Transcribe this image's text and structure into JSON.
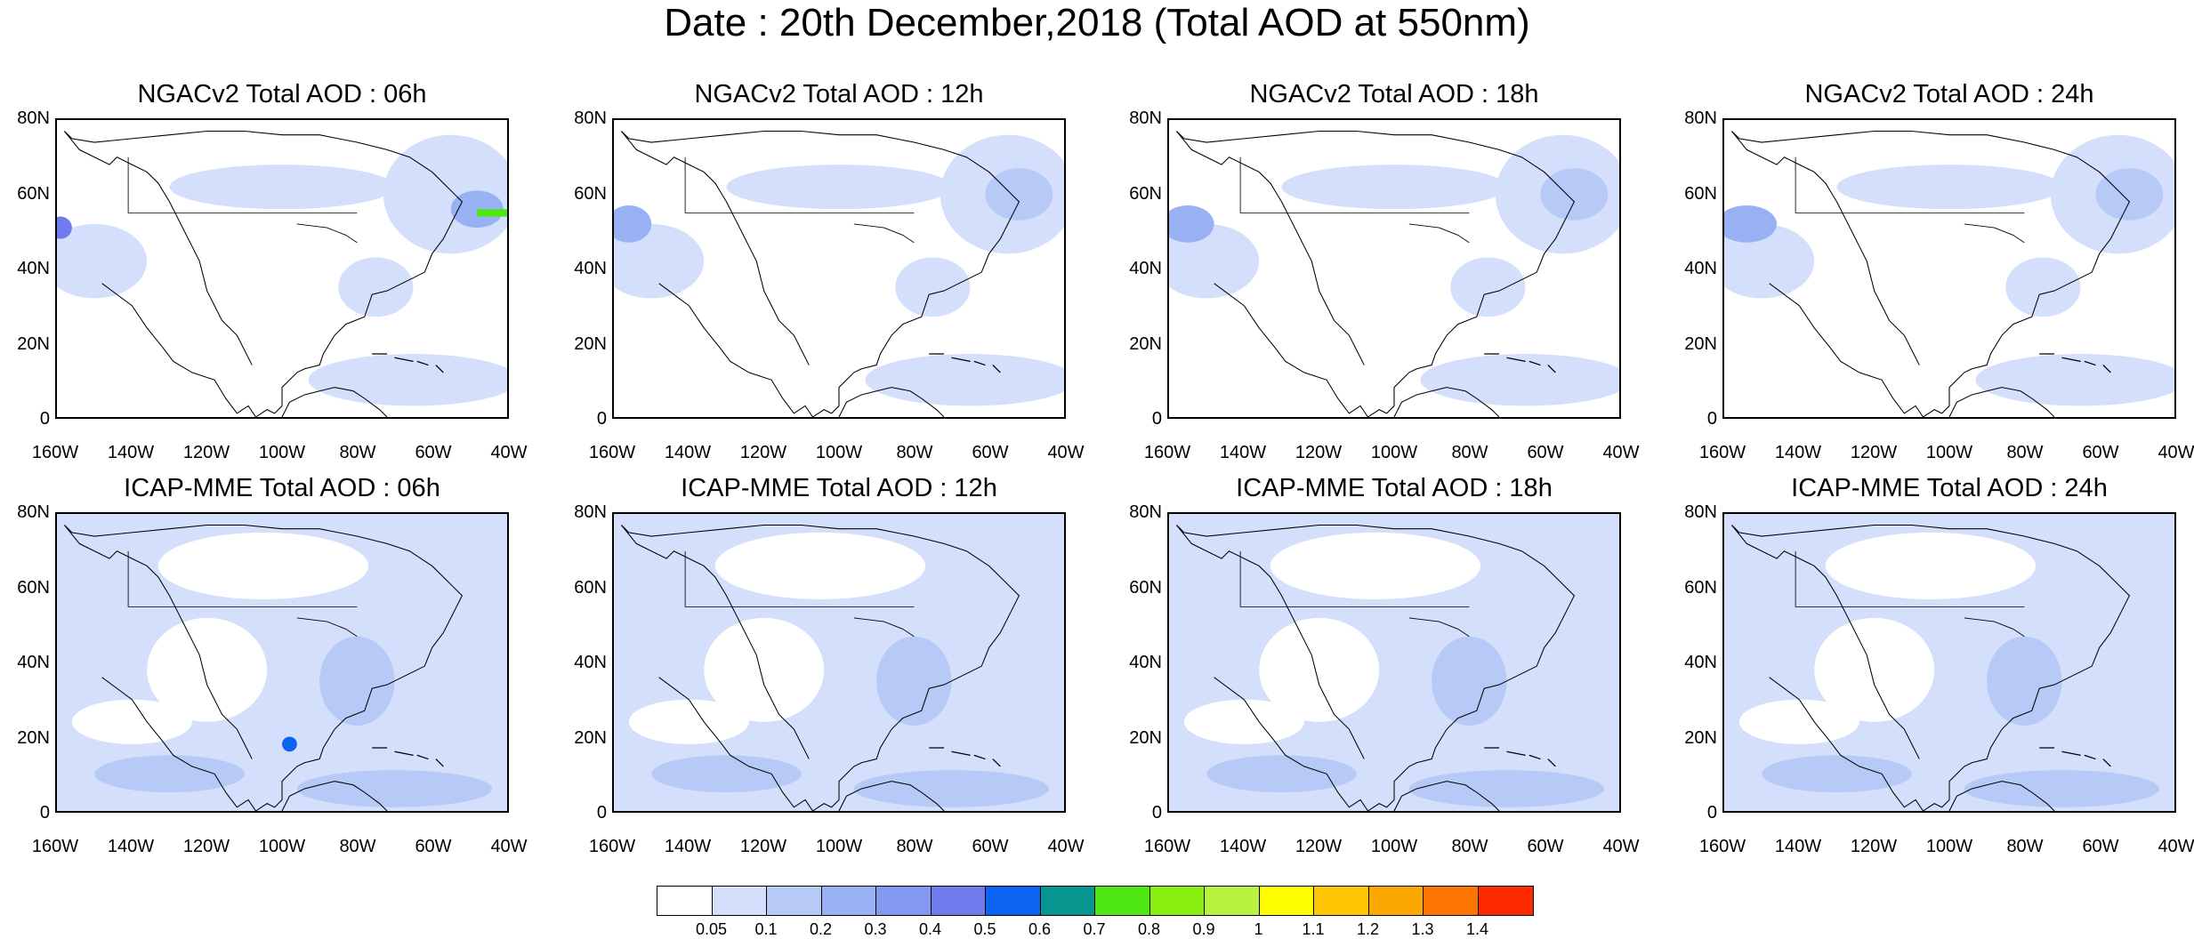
{
  "title": "Date : 20th December,2018 (Total AOD at 550nm)",
  "panels": [
    {
      "id": "ngac-06",
      "title": "NGACv2 Total AOD : 06h"
    },
    {
      "id": "ngac-12",
      "title": "NGACv2 Total AOD : 12h"
    },
    {
      "id": "ngac-18",
      "title": "NGACv2 Total AOD : 18h"
    },
    {
      "id": "ngac-24",
      "title": "NGACv2 Total AOD : 24h"
    },
    {
      "id": "icap-06",
      "title": "ICAP-MME Total AOD : 06h"
    },
    {
      "id": "icap-12",
      "title": "ICAP-MME Total AOD : 12h"
    },
    {
      "id": "icap-18",
      "title": "ICAP-MME Total AOD : 18h"
    },
    {
      "id": "icap-24",
      "title": "ICAP-MME Total AOD : 24h"
    }
  ],
  "lat_labels": [
    "80N",
    "60N",
    "40N",
    "20N",
    "0"
  ],
  "lon_labels": [
    "160W",
    "140W",
    "120W",
    "100W",
    "80W",
    "60W",
    "40W"
  ],
  "colorbar": {
    "colors": [
      "#ffffff",
      "#d4e0fb",
      "#b7c9f7",
      "#98b1f2",
      "#8399ef",
      "#6d7bec",
      "#0d63f1",
      "#06958f",
      "#4fe813",
      "#88ee10",
      "#b9f240",
      "#ffff00",
      "#fdc502",
      "#fca600",
      "#fb7500",
      "#fd2a00"
    ],
    "labels": [
      "0.05",
      "0.1",
      "0.2",
      "0.3",
      "0.4",
      "0.5",
      "0.6",
      "0.7",
      "0.8",
      "0.9",
      "1",
      "1.1",
      "1.2",
      "1.3",
      "1.4"
    ]
  }
}
